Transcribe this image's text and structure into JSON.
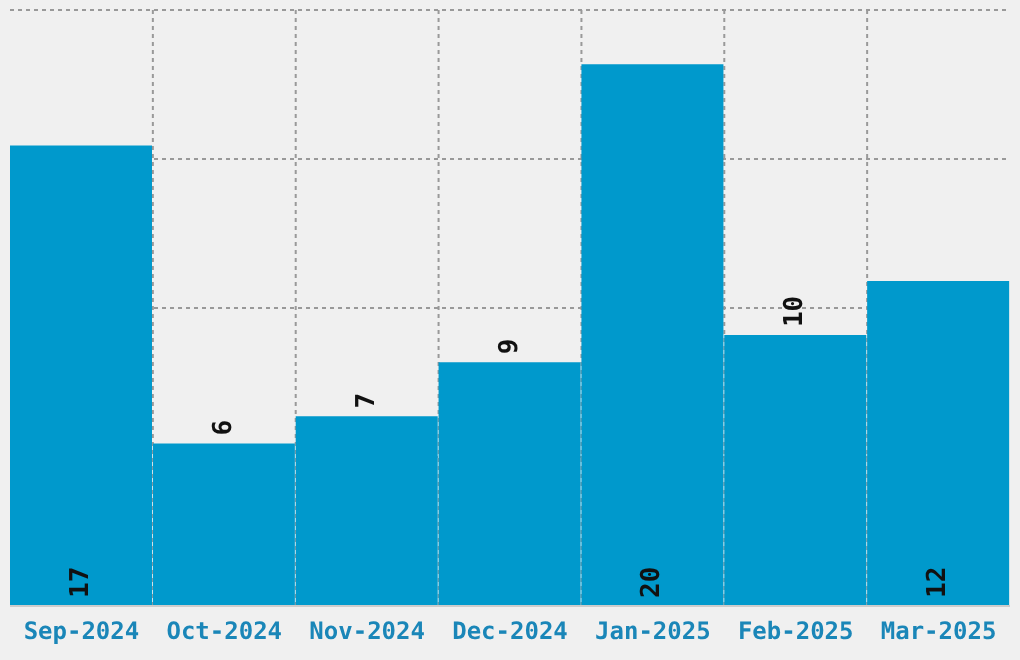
{
  "chart_data": {
    "type": "bar",
    "categories": [
      "Sep-2024",
      "Oct-2024",
      "Nov-2024",
      "Dec-2024",
      "Jan-2025",
      "Feb-2025",
      "Mar-2025"
    ],
    "values": [
      17,
      6,
      7,
      9,
      20,
      10,
      12
    ],
    "color": "#0099cc",
    "ylim": [
      0,
      22
    ],
    "yticks": [
      {
        "value": 0,
        "label": null
      },
      {
        "value": 5.5,
        "label": null
      },
      {
        "value": 11,
        "label": null
      },
      {
        "value": 16.5,
        "label": null
      },
      {
        "value": 22,
        "label": null
      }
    ],
    "tick_labels": "x",
    "grid": true,
    "data_labels": true
  }
}
